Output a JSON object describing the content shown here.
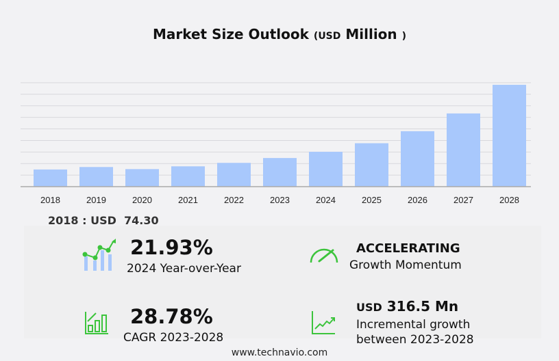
{
  "chart_data": {
    "type": "bar",
    "title": "Market Size Outlook",
    "unit_prefix": "USD",
    "unit": "Million",
    "categories": [
      "2018",
      "2019",
      "2020",
      "2021",
      "2022",
      "2023",
      "2024",
      "2025",
      "2026",
      "2027",
      "2028"
    ],
    "values": [
      74.3,
      85,
      76,
      88,
      103,
      124,
      151,
      188,
      240,
      317,
      441
    ],
    "ylim": [
      0,
      450
    ],
    "grid": true,
    "bar_color": "#a8c8fc"
  },
  "base_label": "2018 : USD  74.30",
  "stats": {
    "yoy": {
      "value": "21.93%",
      "label": "2024 Year-over-Year"
    },
    "momentum": {
      "value": "ACCELERATING",
      "label": "Growth Momentum"
    },
    "cagr": {
      "value": "28.78%",
      "label": "CAGR 2023-2028"
    },
    "incremental": {
      "prefix": "USD",
      "value": "316.5 Mn",
      "label1": "Incremental growth",
      "label2": "between 2023-2028"
    }
  },
  "accent": "#3cc43c",
  "footer": "www.technavio.com"
}
